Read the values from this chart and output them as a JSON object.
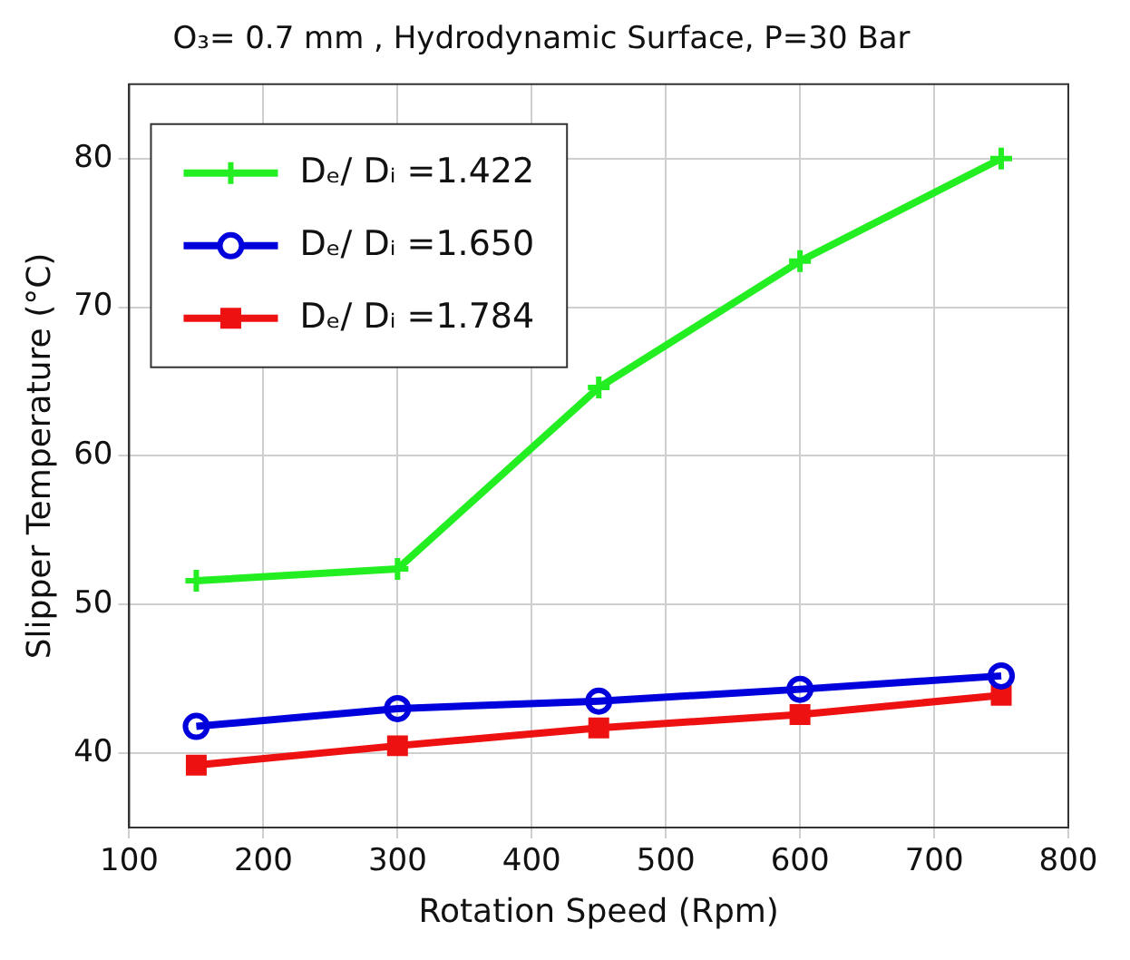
{
  "chart_data": {
    "type": "line",
    "title": "O₃= 0.7 mm , Hydrodynamic Surface, P=30 Bar",
    "xlabel": "Rotation Speed (Rpm)",
    "ylabel": "Slipper Temperature (°C)",
    "x": [
      150,
      300,
      450,
      600,
      750
    ],
    "series": [
      {
        "name": "Dₑ/ Dᵢ =1.422",
        "color": "#22ee22",
        "marker": "cross",
        "values": [
          51.6,
          52.4,
          64.6,
          73.1,
          80.0
        ]
      },
      {
        "name": "Dₑ/ Dᵢ =1.650",
        "color": "#0000dd",
        "marker": "circle",
        "values": [
          41.8,
          43.0,
          43.5,
          44.3,
          45.2
        ]
      },
      {
        "name": "Dₑ/ Dᵢ =1.784",
        "color": "#ee1111",
        "marker": "square",
        "values": [
          39.2,
          40.5,
          41.7,
          42.6,
          43.9
        ]
      }
    ],
    "xlim": [
      100,
      800
    ],
    "xticks": [
      100,
      200,
      300,
      400,
      500,
      600,
      700,
      800
    ],
    "ylim": [
      35,
      85
    ],
    "yticks": [
      40,
      50,
      60,
      70,
      80
    ],
    "grid": true,
    "legend": "top left",
    "line_style": "solid"
  }
}
